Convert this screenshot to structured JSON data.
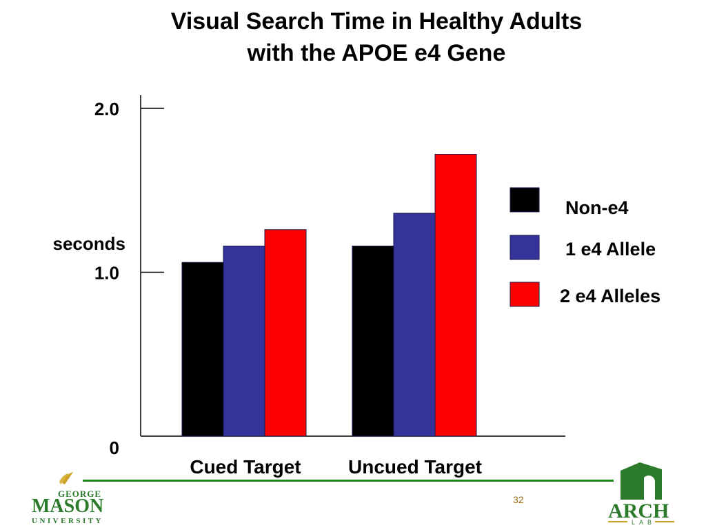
{
  "title_line1": "Visual Search Time in Healthy Adults",
  "title_line2": "with the APOE e4 Gene",
  "page_number": "32",
  "logos": {
    "left_logo_text": [
      "GEORGE",
      "MASON",
      "UNIVERSITY"
    ],
    "right_logo_text": [
      "ARCH",
      "LAB"
    ]
  },
  "colors": {
    "non_e4": "#000000",
    "one_e4": "#333399",
    "two_e4": "#ff0000",
    "rule_green": "#1a8a1a",
    "page_num": "#a06a14"
  },
  "chart_data": {
    "type": "bar",
    "title": "Visual Search Time in Healthy Adults with the APOE e4 Gene",
    "ylabel": "seconds",
    "xlabel": "",
    "ylim": [
      0,
      2.0
    ],
    "yticks": [
      "0",
      "1.0",
      "2.0"
    ],
    "ytick_values": [
      0,
      1.0,
      2.0
    ],
    "categories": [
      "Cued Target",
      "Uncued Target"
    ],
    "series": [
      {
        "name": "Non-e4",
        "color": "#000000",
        "values": [
          1.06,
          1.16
        ]
      },
      {
        "name": "1 e4 Allele",
        "color": "#333399",
        "values": [
          1.16,
          1.36
        ]
      },
      {
        "name": "2 e4 Alleles",
        "color": "#ff0000",
        "values": [
          1.26,
          1.72
        ]
      }
    ],
    "legend_position": "right",
    "grid": false
  }
}
